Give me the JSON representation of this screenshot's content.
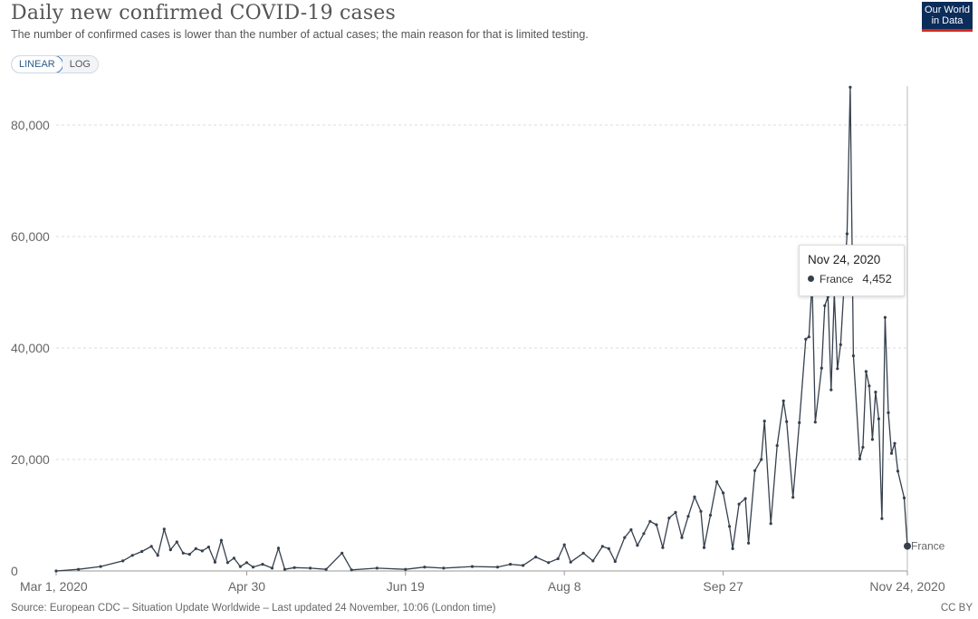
{
  "header": {
    "title": "Daily new confirmed COVID-19 cases",
    "subtitle": "The number of confirmed cases is lower than the number of actual cases; the main reason for that is limited testing.",
    "logo_line1": "Our World",
    "logo_line2": "in Data"
  },
  "scale_toggle": {
    "linear_label": "LINEAR",
    "log_label": "LOG",
    "selected": "LINEAR"
  },
  "tooltip": {
    "date": "Nov 24, 2020",
    "series": "France",
    "value": "4,452"
  },
  "footer": {
    "source": "Source: European CDC – Situation Update Worldwide – Last updated 24 November, 10:06 (London time)",
    "license": "CC BY"
  },
  "colors": {
    "line": "#36404d",
    "grid": "#dddddd",
    "logo_bg": "#0c2d5a",
    "logo_accent": "#d42b21",
    "toggle_active": "#3b78b6"
  },
  "chart_data": {
    "type": "line",
    "title": "Daily new confirmed COVID-19 cases",
    "xlabel": "",
    "ylabel": "",
    "x_start": "2020-03-01",
    "x_end": "2020-11-24",
    "x_ticks": [
      "Mar 1, 2020",
      "Apr 30",
      "Jun 19",
      "Aug 8",
      "Sep 27",
      "Nov 24, 2020"
    ],
    "y_ticks": [
      "0",
      "20,000",
      "40,000",
      "60,000",
      "80,000"
    ],
    "ylim": [
      0,
      87000
    ],
    "grid": true,
    "series": [
      {
        "name": "France",
        "end_label": "France",
        "points": [
          [
            "2020-03-01",
            0
          ],
          [
            "2020-03-08",
            300
          ],
          [
            "2020-03-15",
            800
          ],
          [
            "2020-03-22",
            1800
          ],
          [
            "2020-03-25",
            2800
          ],
          [
            "2020-03-28",
            3500
          ],
          [
            "2020-03-31",
            4400
          ],
          [
            "2020-04-02",
            2800
          ],
          [
            "2020-04-04",
            7500
          ],
          [
            "2020-04-06",
            3800
          ],
          [
            "2020-04-08",
            5200
          ],
          [
            "2020-04-10",
            3200
          ],
          [
            "2020-04-12",
            3000
          ],
          [
            "2020-04-14",
            4000
          ],
          [
            "2020-04-16",
            3600
          ],
          [
            "2020-04-18",
            4300
          ],
          [
            "2020-04-20",
            1600
          ],
          [
            "2020-04-22",
            5500
          ],
          [
            "2020-04-24",
            1500
          ],
          [
            "2020-04-26",
            2300
          ],
          [
            "2020-04-28",
            800
          ],
          [
            "2020-04-30",
            1500
          ],
          [
            "2020-05-02",
            700
          ],
          [
            "2020-05-05",
            1200
          ],
          [
            "2020-05-08",
            500
          ],
          [
            "2020-05-10",
            4100
          ],
          [
            "2020-05-12",
            300
          ],
          [
            "2020-05-15",
            600
          ],
          [
            "2020-05-20",
            500
          ],
          [
            "2020-05-25",
            300
          ],
          [
            "2020-05-30",
            3200
          ],
          [
            "2020-06-02",
            200
          ],
          [
            "2020-06-10",
            500
          ],
          [
            "2020-06-19",
            300
          ],
          [
            "2020-06-25",
            700
          ],
          [
            "2020-07-01",
            500
          ],
          [
            "2020-07-10",
            800
          ],
          [
            "2020-07-18",
            700
          ],
          [
            "2020-07-22",
            1200
          ],
          [
            "2020-07-26",
            1000
          ],
          [
            "2020-07-30",
            2500
          ],
          [
            "2020-08-03",
            1500
          ],
          [
            "2020-08-06",
            2200
          ],
          [
            "2020-08-08",
            4700
          ],
          [
            "2020-08-10",
            1600
          ],
          [
            "2020-08-14",
            3200
          ],
          [
            "2020-08-17",
            1800
          ],
          [
            "2020-08-20",
            4400
          ],
          [
            "2020-08-22",
            4000
          ],
          [
            "2020-08-24",
            1700
          ],
          [
            "2020-08-27",
            6000
          ],
          [
            "2020-08-29",
            7400
          ],
          [
            "2020-08-31",
            4600
          ],
          [
            "2020-09-02",
            6700
          ],
          [
            "2020-09-04",
            8900
          ],
          [
            "2020-09-06",
            8300
          ],
          [
            "2020-09-08",
            4200
          ],
          [
            "2020-09-10",
            9500
          ],
          [
            "2020-09-12",
            10500
          ],
          [
            "2020-09-14",
            6000
          ],
          [
            "2020-09-16",
            9800
          ],
          [
            "2020-09-18",
            13300
          ],
          [
            "2020-09-20",
            10700
          ],
          [
            "2020-09-21",
            4200
          ],
          [
            "2020-09-23",
            10000
          ],
          [
            "2020-09-25",
            16000
          ],
          [
            "2020-09-27",
            14000
          ],
          [
            "2020-09-29",
            8000
          ],
          [
            "2020-09-30",
            4000
          ],
          [
            "2020-10-02",
            12000
          ],
          [
            "2020-10-04",
            13000
          ],
          [
            "2020-10-05",
            5000
          ],
          [
            "2020-10-07",
            18000
          ],
          [
            "2020-10-09",
            20000
          ],
          [
            "2020-10-10",
            26900
          ],
          [
            "2020-10-12",
            8500
          ],
          [
            "2020-10-14",
            22500
          ],
          [
            "2020-10-16",
            30500
          ],
          [
            "2020-10-17",
            26800
          ],
          [
            "2020-10-19",
            13200
          ],
          [
            "2020-10-21",
            26600
          ],
          [
            "2020-10-23",
            41600
          ],
          [
            "2020-10-24",
            42000
          ],
          [
            "2020-10-25",
            52000
          ],
          [
            "2020-10-26",
            26700
          ],
          [
            "2020-10-28",
            36400
          ],
          [
            "2020-10-29",
            47600
          ],
          [
            "2020-10-30",
            49200
          ],
          [
            "2020-10-31",
            32500
          ],
          [
            "2020-11-01",
            49800
          ],
          [
            "2020-11-02",
            36300
          ],
          [
            "2020-11-03",
            40600
          ],
          [
            "2020-11-05",
            60500
          ],
          [
            "2020-11-06",
            86800
          ],
          [
            "2020-11-07",
            38600
          ],
          [
            "2020-11-09",
            20100
          ],
          [
            "2020-11-10",
            22200
          ],
          [
            "2020-11-11",
            35800
          ],
          [
            "2020-11-12",
            33200
          ],
          [
            "2020-11-13",
            23600
          ],
          [
            "2020-11-14",
            32100
          ],
          [
            "2020-11-15",
            27300
          ],
          [
            "2020-11-16",
            9400
          ],
          [
            "2020-11-17",
            45500
          ],
          [
            "2020-11-18",
            28400
          ],
          [
            "2020-11-19",
            21100
          ],
          [
            "2020-11-20",
            22900
          ],
          [
            "2020-11-21",
            17900
          ],
          [
            "2020-11-23",
            13100
          ],
          [
            "2020-11-24",
            4452
          ]
        ]
      }
    ]
  }
}
